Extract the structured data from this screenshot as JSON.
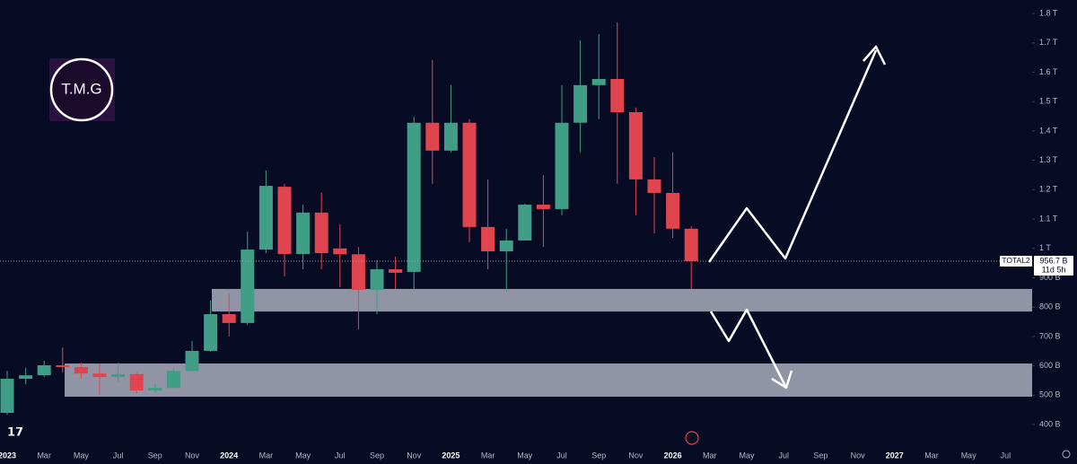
{
  "logo": "T.M.G",
  "chart_data": {
    "type": "candlestick",
    "categories": [
      "2023",
      null,
      "Mar",
      null,
      "May",
      null,
      "Jul",
      null,
      "Sep",
      null,
      "Nov",
      null,
      "2024",
      null,
      "Mar",
      null,
      "May",
      null,
      "Jul",
      null,
      "Sep",
      null,
      "Nov",
      null,
      "2025",
      null,
      "Mar",
      null,
      "May",
      null,
      "Jul",
      null,
      "Sep",
      null,
      "Nov",
      null,
      "2026",
      null,
      "Mar",
      null,
      "May",
      null,
      "Jul",
      null,
      "Sep",
      null,
      "Nov",
      null,
      "2027",
      null,
      "Mar",
      null,
      "May",
      null,
      "Jul"
    ],
    "series": [
      {
        "name": "TOTAL2",
        "up_color": "#3f9e85",
        "down_color": "#e0454f",
        "open": [
          440,
          556,
          568,
          602,
          596,
          574,
          562,
          572,
          516,
          525,
          583,
          651,
          776,
          746,
          996,
          1210,
          981,
          1122,
          1000,
          980,
          859,
          929,
          920,
          1428,
          1333,
          1428,
          1073,
          990,
          1027,
          1149,
          1134,
          1428,
          1556,
          1577,
          1464,
          1235,
          1189,
          1067,
          null,
          null,
          null,
          null,
          null,
          null,
          null,
          null,
          null,
          null,
          null,
          null,
          null,
          null,
          null,
          null,
          null
        ],
        "high": [
          583,
          593,
          617,
          663,
          611,
          608,
          611,
          577,
          538,
          593,
          684,
          822,
          846,
          1057,
          1265,
          1220,
          1149,
          1189,
          1082,
          1005,
          960,
          972,
          1449,
          1642,
          1556,
          1440,
          1235,
          1067,
          1152,
          1250,
          1556,
          1709,
          1730,
          1770,
          1480,
          1311,
          1327,
          1076,
          null,
          null,
          null,
          null,
          null,
          null,
          null,
          null,
          null,
          null,
          null,
          null,
          null,
          null,
          null,
          null,
          null
        ],
        "low": [
          434,
          538,
          562,
          577,
          556,
          501,
          547,
          507,
          507,
          525,
          580,
          648,
          700,
          740,
          984,
          905,
          929,
          929,
          868,
          724,
          776,
          862,
          862,
          1220,
          1327,
          1021,
          929,
          853,
          1027,
          1005,
          1113,
          1327,
          1440,
          1220,
          1113,
          1051,
          1036,
          862,
          null,
          null,
          null,
          null,
          null,
          null,
          null,
          null,
          null,
          null,
          null,
          null,
          null,
          null,
          null,
          null,
          null
        ],
        "close": [
          556,
          568,
          602,
          596,
          574,
          562,
          572,
          516,
          525,
          583,
          651,
          776,
          746,
          996,
          1213,
          981,
          1122,
          984,
          980,
          859,
          929,
          917,
          1428,
          1333,
          1428,
          1073,
          990,
          1027,
          1149,
          1134,
          1428,
          1556,
          1577,
          1464,
          1235,
          1189,
          1067,
          956.7,
          null,
          null,
          null,
          null,
          null,
          null,
          null,
          null,
          null,
          null,
          null,
          null,
          null,
          null,
          null,
          null,
          null
        ]
      }
    ],
    "ylim": [
      333,
      1846
    ],
    "yticks": [
      {
        "value": 400,
        "label": "400 B"
      },
      {
        "value": 500,
        "label": "500 B"
      },
      {
        "value": 600,
        "label": "600 B"
      },
      {
        "value": 700,
        "label": "700 B"
      },
      {
        "value": 800,
        "label": "800 B"
      },
      {
        "value": 900,
        "label": "900 B"
      },
      {
        "value": 1000,
        "label": "1 T"
      },
      {
        "value": 1100,
        "label": "1.1 T"
      },
      {
        "value": 1200,
        "label": "1.2 T"
      },
      {
        "value": 1300,
        "label": "1.3 T"
      },
      {
        "value": 1400,
        "label": "1.4 T"
      },
      {
        "value": 1500,
        "label": "1.5 T"
      },
      {
        "value": 1600,
        "label": "1.6 T"
      },
      {
        "value": 1700,
        "label": "1.7 T"
      },
      {
        "value": 1800,
        "label": "1.8 T"
      }
    ],
    "zones": [
      {
        "low": 785,
        "high": 862
      },
      {
        "low": 495,
        "high": 608
      }
    ],
    "price_line": {
      "value": 956.7,
      "label": "956.7 B",
      "countdown": "11d 5h"
    }
  }
}
